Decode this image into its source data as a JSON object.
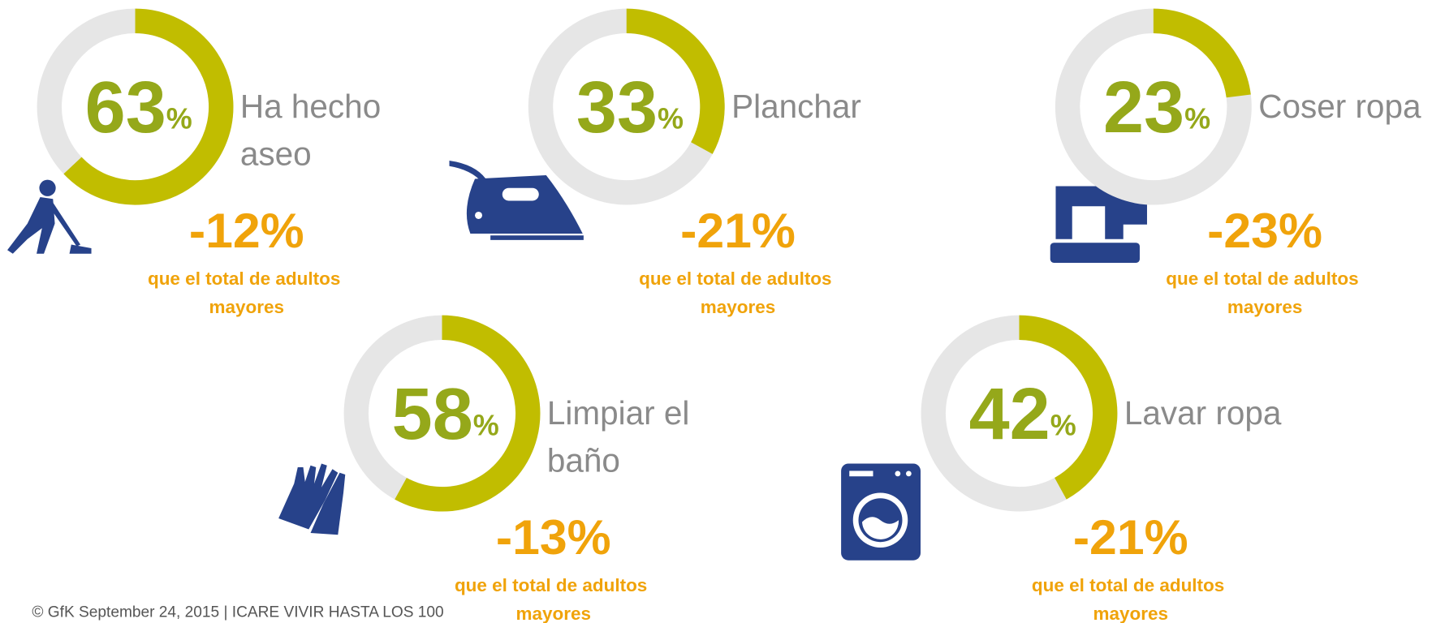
{
  "chart_data": [
    {
      "type": "donut",
      "title": "Ha hecho aseo",
      "values": [
        63
      ],
      "unit": "%",
      "change": {
        "value": -12,
        "label": "-12%"
      },
      "note": "que el total de adultos mayores",
      "color": "#c1bd00",
      "track_color": "#e6e6e6"
    },
    {
      "type": "donut",
      "title": "Planchar",
      "values": [
        33
      ],
      "unit": "%",
      "change": {
        "value": -21,
        "label": "-21%"
      },
      "note": "que el total de adultos mayores",
      "color": "#c1bd00",
      "track_color": "#e6e6e6"
    },
    {
      "type": "donut",
      "title": "Coser ropa",
      "values": [
        23
      ],
      "unit": "%",
      "change": {
        "value": -23,
        "label": "-23%"
      },
      "note": "que el total de adultos mayores",
      "color": "#c1bd00",
      "track_color": "#e6e6e6"
    },
    {
      "type": "donut",
      "title": "Limpiar el baño",
      "values": [
        58
      ],
      "unit": "%",
      "change": {
        "value": -13,
        "label": "-13%"
      },
      "note": "que el total de adultos mayores",
      "color": "#c1bd00",
      "track_color": "#e6e6e6"
    },
    {
      "type": "donut",
      "title": "Lavar ropa",
      "values": [
        42
      ],
      "unit": "%",
      "change": {
        "value": -21,
        "label": "-21%"
      },
      "note": "que el total de adultos mayores",
      "color": "#c1bd00",
      "track_color": "#e6e6e6"
    }
  ],
  "footer": "© GfK September 24, 2015 | ICARE  VIVIR HASTA LOS 100"
}
